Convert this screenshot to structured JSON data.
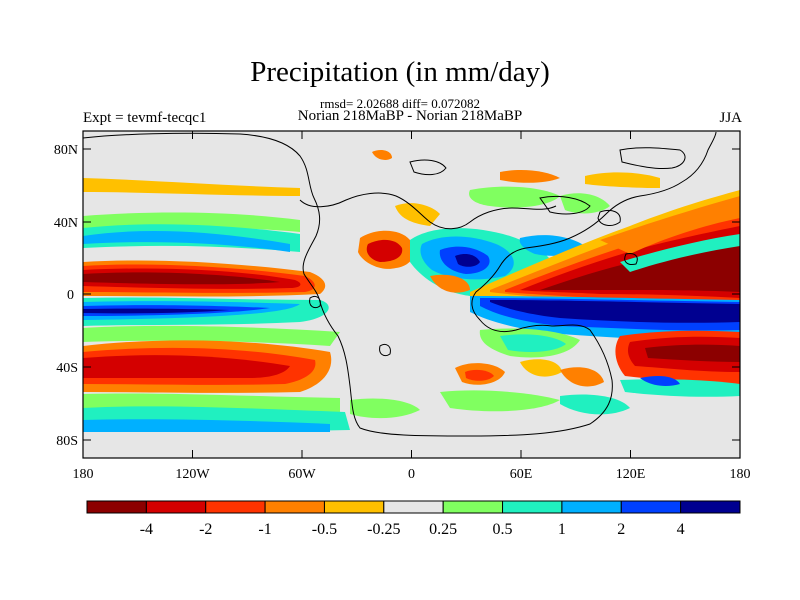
{
  "figure": {
    "title": "Precipitation (in mm/day)",
    "stats": "rmsd= 2.02688 diff= 0.072082",
    "experiment": "Expt = tevmf-tecqc1",
    "subtitle": "Norian 218MaBP - Norian 218MaBP",
    "season": "JJA"
  },
  "map": {
    "lon_ticks": [
      "180",
      "120W",
      "60W",
      "0",
      "60E",
      "120E",
      "180"
    ],
    "lat_ticks": [
      "80N",
      "40N",
      "0",
      "40S",
      "80S"
    ],
    "lon_range": [
      -180,
      180
    ],
    "lat_range": [
      -90,
      90
    ],
    "projection": "cylindrical equidistant"
  },
  "colorbar": {
    "labels": [
      "-4",
      "-2",
      "-1",
      "-0.5",
      "-0.25",
      "0.25",
      "0.5",
      "1",
      "2",
      "4"
    ],
    "colors": [
      "#8c0000",
      "#d40000",
      "#ff3300",
      "#ff8000",
      "#ffc000",
      "#e6e6e6",
      "#80ff60",
      "#20f0c0",
      "#00b0ff",
      "#0040ff",
      "#000090"
    ]
  }
}
